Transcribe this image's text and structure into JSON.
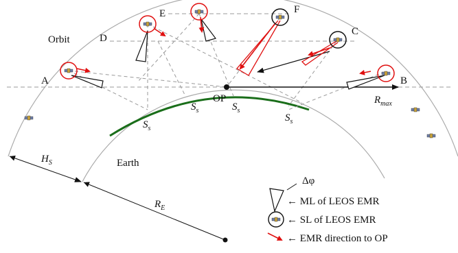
{
  "labels": {
    "a": "A",
    "b": "B",
    "c": "C",
    "d": "D",
    "e": "E",
    "f": "F",
    "orbit": "Orbit",
    "op": "OP",
    "earth": "Earth",
    "s_main": "S",
    "s_sub": "s",
    "rmax_main": "R",
    "rmax_sub": "max",
    "hs_main": "H",
    "hs_sub": "S",
    "re_main": "R",
    "re_sub": "E"
  },
  "legend": {
    "delta_phi": "Δφ",
    "ml": "← ML of LEOS EMR",
    "sl": "← SL of LEOS EMR",
    "dir": "← EMR direction to OP"
  },
  "colors": {
    "earth": "#1a6e1a",
    "arrow": "#e01010",
    "circle": "#e01010",
    "orbit": "#888888",
    "dash": "#999999"
  },
  "icons": [
    "satellite-icon",
    "main-lobe-icon",
    "side-lobe-icon",
    "direction-arrow-icon"
  ]
}
